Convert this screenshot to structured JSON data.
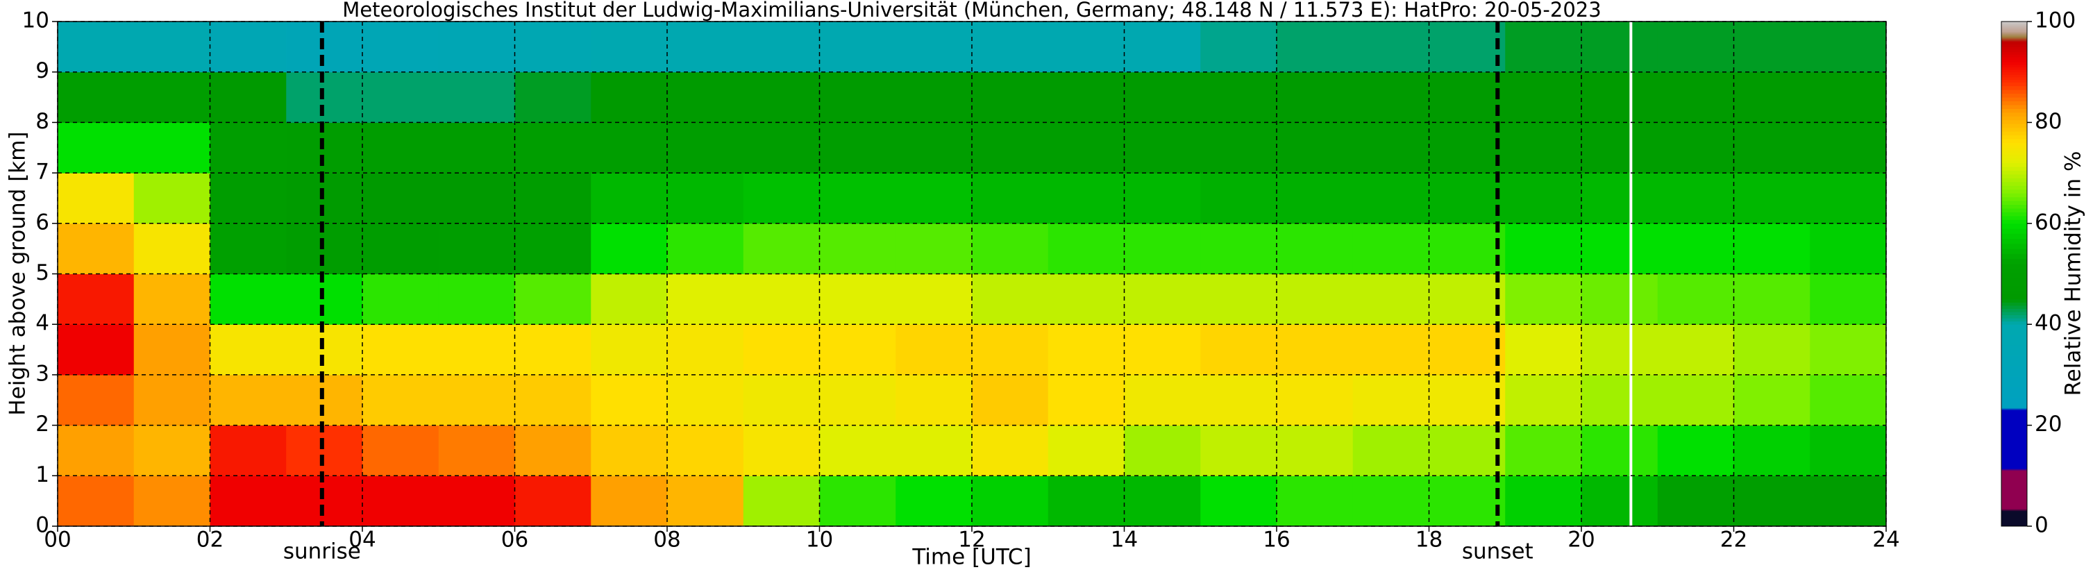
{
  "chart_data": {
    "type": "heatmap",
    "title": "Meteorologisches Institut der Ludwig-Maximilians-Universität (München, Germany; 48.148 N / 11.573 E):    HatPro: 20-05-2023",
    "xlabel": "Time [UTC]",
    "ylabel": "Height above ground [km]",
    "xlim": [
      0,
      24
    ],
    "ylim": [
      0,
      10
    ],
    "xticks": [
      {
        "value": 0,
        "label": "00"
      },
      {
        "value": 2,
        "label": "02"
      },
      {
        "value": 4,
        "label": "04"
      },
      {
        "value": 6,
        "label": "06"
      },
      {
        "value": 8,
        "label": "08"
      },
      10,
      12,
      14,
      16,
      18,
      20,
      22,
      24
    ],
    "yticks": [
      0,
      1,
      2,
      3,
      4,
      5,
      6,
      7,
      8,
      9,
      10
    ],
    "grid": true,
    "x_edges": [
      0,
      1,
      2,
      3,
      4,
      5,
      6,
      7,
      8,
      9,
      10,
      11,
      12,
      13,
      14,
      15,
      16,
      17,
      18,
      19,
      20,
      21,
      22,
      23,
      24
    ],
    "y_edges": [
      0,
      1,
      2,
      3,
      4,
      5,
      6,
      7,
      8,
      9,
      10
    ],
    "z": [
      [
        85,
        83,
        92,
        92,
        92,
        92,
        90,
        82,
        80,
        68,
        62,
        60,
        58,
        55,
        55,
        60,
        62,
        62,
        62,
        58,
        55,
        52,
        50,
        48
      ],
      [
        82,
        80,
        90,
        88,
        85,
        84,
        82,
        78,
        77,
        75,
        72,
        72,
        75,
        72,
        68,
        70,
        70,
        68,
        68,
        64,
        62,
        60,
        58,
        56
      ],
      [
        85,
        82,
        80,
        80,
        78,
        78,
        78,
        76,
        75,
        74,
        74,
        75,
        78,
        76,
        74,
        74,
        75,
        74,
        74,
        70,
        68,
        68,
        66,
        64
      ],
      [
        92,
        82,
        75,
        75,
        76,
        76,
        76,
        74,
        75,
        76,
        76,
        77,
        77,
        76,
        76,
        77,
        77,
        77,
        77,
        72,
        70,
        70,
        68,
        66
      ],
      [
        90,
        80,
        60,
        60,
        62,
        62,
        64,
        70,
        72,
        72,
        72,
        72,
        70,
        70,
        70,
        70,
        70,
        70,
        70,
        66,
        65,
        64,
        64,
        62
      ],
      [
        80,
        75,
        52,
        48,
        48,
        50,
        52,
        60,
        62,
        64,
        64,
        64,
        63,
        62,
        62,
        62,
        62,
        62,
        62,
        60,
        60,
        60,
        60,
        58
      ],
      [
        75,
        68,
        48,
        46,
        45,
        45,
        48,
        55,
        55,
        56,
        56,
        56,
        55,
        55,
        55,
        54,
        54,
        54,
        54,
        54,
        55,
        55,
        55,
        55
      ],
      [
        60,
        60,
        50,
        48,
        48,
        48,
        50,
        50,
        50,
        50,
        50,
        50,
        50,
        50,
        50,
        50,
        50,
        50,
        50,
        50,
        50,
        50,
        50,
        50
      ],
      [
        50,
        50,
        45,
        42,
        42,
        42,
        44,
        45,
        46,
        46,
        46,
        46,
        46,
        46,
        46,
        46,
        46,
        46,
        46,
        46,
        46,
        46,
        46,
        46
      ],
      [
        40,
        40,
        36,
        34,
        35,
        36,
        38,
        40,
        40,
        40,
        40,
        40,
        40,
        40,
        40,
        41,
        42,
        42,
        42,
        44,
        44,
        44,
        44,
        44
      ]
    ],
    "colorscale": [
      [
        0,
        "#0a0a2a"
      ],
      [
        3,
        "#0a0a2a"
      ],
      [
        3.5,
        "#900050"
      ],
      [
        11,
        "#900050"
      ],
      [
        11.5,
        "#0000c0"
      ],
      [
        23,
        "#0000c0"
      ],
      [
        23.5,
        "#00a0c0"
      ],
      [
        40,
        "#00a8b0"
      ],
      [
        45,
        "#009a00"
      ],
      [
        52,
        "#00a000"
      ],
      [
        60,
        "#00e000"
      ],
      [
        66,
        "#80f000"
      ],
      [
        72,
        "#e0f000"
      ],
      [
        76,
        "#ffe000"
      ],
      [
        82,
        "#ffa000"
      ],
      [
        88,
        "#ff3000"
      ],
      [
        92,
        "#f00000"
      ],
      [
        96,
        "#c00000"
      ],
      [
        97,
        "#a08040"
      ],
      [
        98,
        "#c0a090"
      ],
      [
        100,
        "#c8c8c8"
      ]
    ],
    "cblim": [
      0,
      100
    ],
    "cbticks": [
      0,
      20,
      40,
      60,
      80,
      100
    ],
    "colorbar_label": "Relative Humidity in %",
    "annotations": [
      {
        "text": "sunrise",
        "x": 3.47
      },
      {
        "text": "sunset",
        "x": 18.9
      }
    ],
    "data_gaps": [
      20.65
    ]
  }
}
